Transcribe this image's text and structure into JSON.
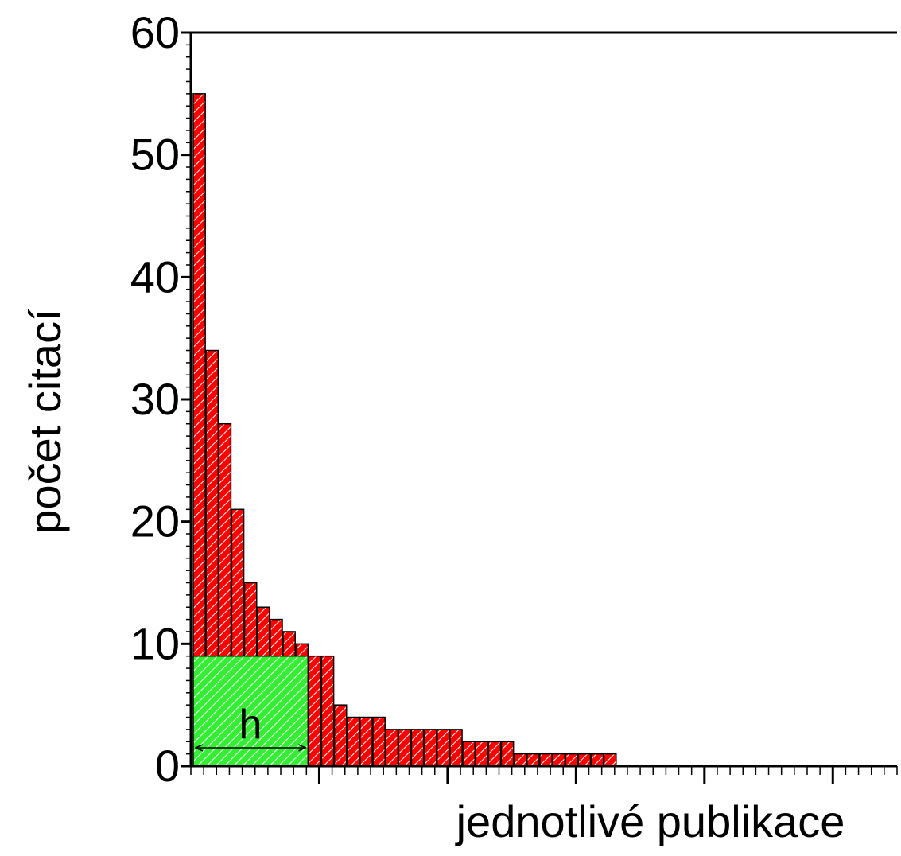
{
  "chart_data": {
    "type": "bar",
    "title": "",
    "xlabel": "jednotlivé publikace",
    "ylabel": "počet citací",
    "ylim": [
      0,
      60
    ],
    "xlim": [
      0,
      55
    ],
    "yticks": [
      "0",
      "10",
      "20",
      "30",
      "40",
      "50",
      "60"
    ],
    "grid": false,
    "legend": "none",
    "values": [
      55,
      34,
      28,
      21,
      15,
      13,
      12,
      11,
      10,
      9,
      9,
      5,
      4,
      4,
      4,
      3,
      3,
      3,
      3,
      3,
      3,
      2,
      2,
      2,
      2,
      1,
      1,
      1,
      1,
      1,
      1,
      1,
      1,
      0,
      0,
      0,
      0,
      0,
      0,
      0,
      0,
      0,
      0,
      0,
      0,
      0,
      0,
      0,
      0,
      0,
      0,
      0,
      0,
      0,
      0
    ],
    "h_index": 9,
    "h_label": "h",
    "colors": {
      "bar": "#ff0000",
      "h_region": "#33ee33",
      "axis": "#000000"
    }
  }
}
